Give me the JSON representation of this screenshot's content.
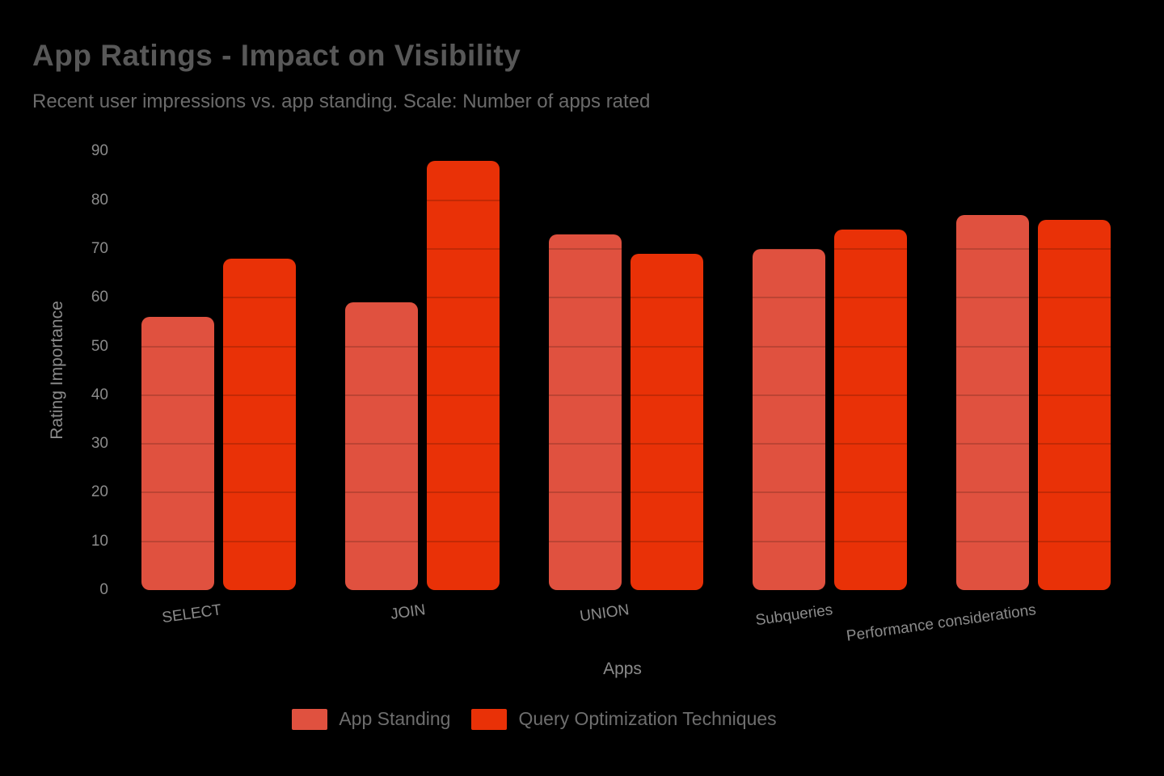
{
  "header": {
    "title": "App Ratings - Impact on Visibility",
    "subtitle": "Recent user impressions vs. app standing. Scale: Number of apps rated"
  },
  "chart_data": {
    "type": "bar",
    "title": "App Ratings - Impact on Visibility",
    "subtitle": "Recent user impressions vs. app standing. Scale: Number of apps rated",
    "categories": [
      "SELECT",
      "JOIN",
      "UNION",
      "Subqueries",
      "Performance considerations"
    ],
    "series": [
      {
        "name": "App Standing",
        "color": "#E0513F",
        "values": [
          56,
          59,
          73,
          70,
          77
        ]
      },
      {
        "name": "Query Optimization Techniques",
        "color": "#E93107",
        "values": [
          68,
          88,
          69,
          74,
          76
        ]
      }
    ],
    "xlabel": "Apps",
    "ylabel": "Rating Importance",
    "ylim": [
      0,
      90
    ],
    "yticks": [
      0,
      10,
      20,
      30,
      40,
      50,
      60,
      70,
      80,
      90
    ],
    "grid": "horizontal gridlines overlaid on bars only",
    "legend_position": "bottom-center",
    "background_color": "#000000",
    "x_tick_rotation_deg": -8
  }
}
